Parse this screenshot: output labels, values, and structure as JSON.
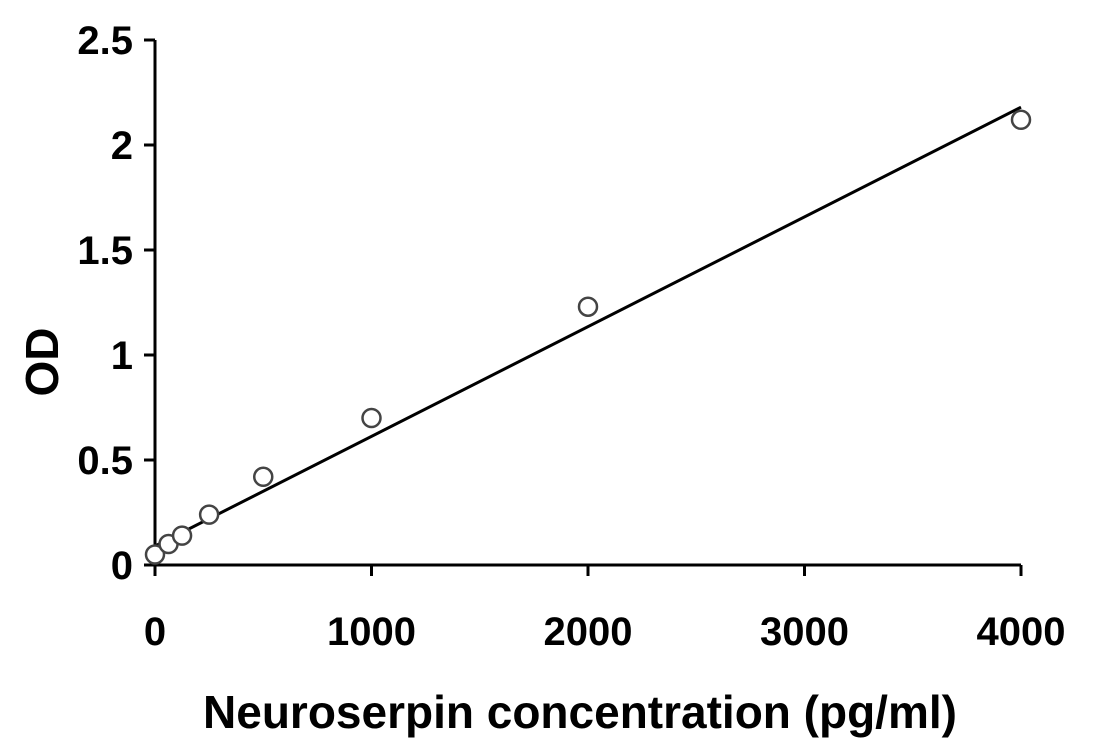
{
  "chart_data": {
    "type": "scatter",
    "title": "",
    "xlabel": "Neuroserpin concentration (pg/ml)",
    "ylabel": "OD",
    "xlim": [
      0,
      4000
    ],
    "ylim": [
      0,
      2.5
    ],
    "x_ticks": [
      0,
      1000,
      2000,
      3000,
      4000
    ],
    "x_tick_labels": [
      "0",
      "1000",
      "2000",
      "3000",
      "4000"
    ],
    "y_ticks": [
      0,
      0.5,
      1,
      1.5,
      2,
      2.5
    ],
    "y_tick_labels": [
      "0",
      "0.5",
      "1",
      "1.5",
      "2",
      "2.5"
    ],
    "grid": false,
    "legend": "none",
    "series": [
      {
        "marker": "open-circle",
        "x": [
          0,
          62.5,
          125,
          250,
          500,
          1000,
          2000,
          4000
        ],
        "y": [
          0.05,
          0.1,
          0.14,
          0.24,
          0.42,
          0.7,
          1.23,
          2.12
        ]
      }
    ],
    "trendline": {
      "type": "linear",
      "x": [
        0,
        4000
      ],
      "y": [
        0.09,
        2.18
      ]
    },
    "colors": {
      "axis": "#000000",
      "marker_stroke": "#444444",
      "marker_fill": "#ffffff",
      "trendline": "#000000"
    }
  }
}
